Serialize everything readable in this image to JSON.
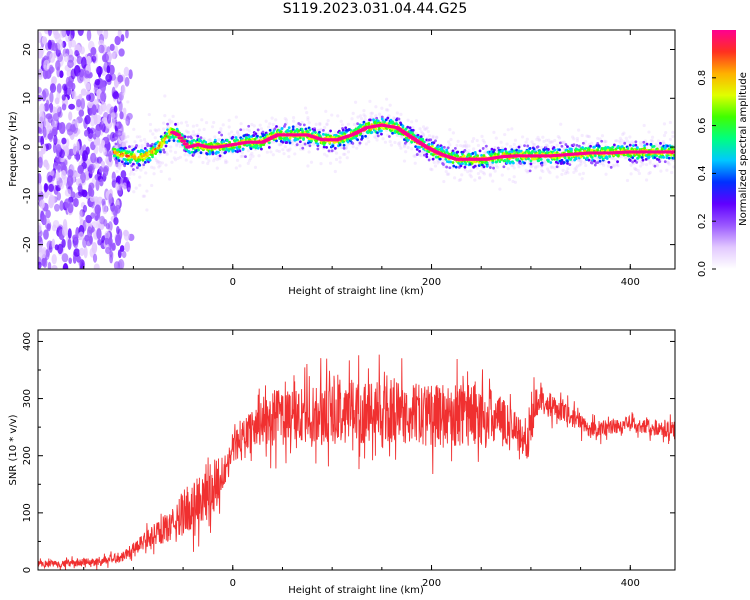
{
  "title": "S119.2023.031.04.44.G25",
  "colors": {
    "snr_line": "#f03030",
    "colormap": [
      "#ffffff",
      "#e2c8ff",
      "#9b59ff",
      "#6000ff",
      "#0030ff",
      "#00c8ff",
      "#00ff80",
      "#40ff00",
      "#e0ff00",
      "#ffb000",
      "#ff3020",
      "#ff0090"
    ]
  },
  "chart_data": [
    {
      "type": "heatmap",
      "xlabel": "Height of straight line (km)",
      "ylabel": "Frequency (Hz)",
      "xlim": [
        -196,
        445
      ],
      "ylim": [
        -25,
        24
      ],
      "xticks": [
        "0",
        "200",
        "400"
      ],
      "xtick_values": [
        0,
        200,
        400
      ],
      "yticks": [
        "-20",
        "-10",
        "0",
        "10",
        "20"
      ],
      "ytick_values": [
        -20,
        -10,
        0,
        10,
        20
      ],
      "colorbar": {
        "label": "Normalized spectral amplitude",
        "range": [
          0,
          1
        ],
        "ticks": [
          "0.0",
          "0.2",
          "0.4",
          "0.6",
          "0.8"
        ],
        "tick_values": [
          0.0,
          0.2,
          0.4,
          0.6,
          0.8
        ]
      },
      "noise_region_x": [
        -196,
        -100
      ],
      "ridge": {
        "x": [
          -120,
          -105,
          -90,
          -80,
          -70,
          -62,
          -55,
          -45,
          -35,
          -25,
          -15,
          0,
          15,
          30,
          45,
          60,
          75,
          90,
          105,
          120,
          135,
          150,
          165,
          180,
          195,
          210,
          225,
          240,
          255,
          270,
          285,
          300,
          320,
          340,
          360,
          380,
          400,
          420,
          445
        ],
        "y": [
          -1,
          -2,
          -2,
          -1,
          1,
          3.2,
          2.5,
          0,
          0.5,
          0,
          0,
          0.5,
          1,
          1,
          2.5,
          2.5,
          2.5,
          1.5,
          1.5,
          2.5,
          4,
          4.5,
          4,
          2,
          0,
          -1.5,
          -2.5,
          -2.5,
          -2.5,
          -2,
          -1.8,
          -1.8,
          -1.8,
          -1.5,
          -1.2,
          -1.2,
          -1,
          -1,
          -1
        ]
      }
    },
    {
      "type": "line",
      "xlabel": "Height of straight line (km)",
      "ylabel": "SNR (10 * v/v)",
      "xlim": [
        -196,
        445
      ],
      "ylim": [
        0,
        420
      ],
      "xticks": [
        "0",
        "200",
        "400"
      ],
      "xtick_values": [
        0,
        200,
        400
      ],
      "yticks": [
        "0",
        "100",
        "200",
        "300",
        "400"
      ],
      "ytick_values": [
        0,
        100,
        200,
        300,
        400
      ],
      "series": [
        {
          "x": [
            -196,
            -160,
            -130,
            -110,
            -95,
            -80,
            -70,
            -60,
            -50,
            -40,
            -30,
            -20,
            -10,
            0,
            10,
            20,
            30,
            40,
            60,
            80,
            100,
            120,
            140,
            160,
            180,
            200,
            220,
            240,
            260,
            280,
            290,
            295,
            300,
            305,
            310,
            320,
            340,
            360,
            380,
            400,
            420,
            445
          ],
          "values": [
            10,
            12,
            15,
            25,
            45,
            60,
            70,
            80,
            100,
            115,
            120,
            145,
            170,
            210,
            235,
            250,
            260,
            265,
            270,
            270,
            275,
            280,
            275,
            275,
            275,
            270,
            270,
            275,
            265,
            255,
            235,
            215,
            245,
            300,
            300,
            285,
            270,
            245,
            250,
            255,
            250,
            245
          ],
          "spread": [
            8,
            8,
            10,
            12,
            15,
            25,
            30,
            35,
            50,
            60,
            55,
            60,
            45,
            40,
            30,
            40,
            55,
            60,
            60,
            65,
            70,
            70,
            70,
            70,
            65,
            70,
            70,
            75,
            65,
            45,
            40,
            35,
            45,
            40,
            30,
            25,
            22,
            20,
            18,
            18,
            18,
            18
          ]
        }
      ]
    }
  ]
}
